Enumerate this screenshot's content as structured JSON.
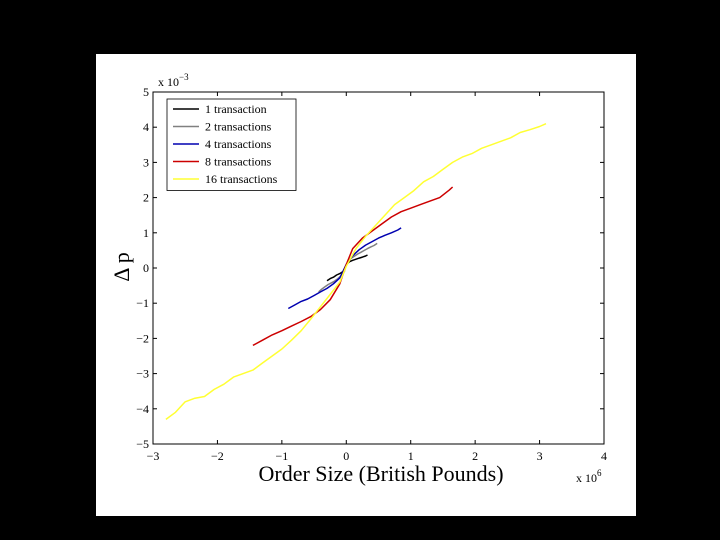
{
  "chart_data": {
    "type": "line",
    "title": "",
    "xlabel": "Order Size (British Pounds)",
    "ylabel": "Δ p",
    "x_multiplier": {
      "base": "x 10",
      "exp": "6"
    },
    "y_multiplier": {
      "base": "x 10",
      "exp": "−3"
    },
    "xlim": [
      -3000000,
      4000000
    ],
    "ylim": [
      -0.005,
      0.005
    ],
    "xticks": [
      -3000000,
      -2000000,
      -1000000,
      0,
      1000000,
      2000000,
      3000000,
      4000000
    ],
    "xtick_labels": [
      "−3",
      "−2",
      "−1",
      "0",
      "1",
      "2",
      "3",
      "4"
    ],
    "yticks": [
      -0.005,
      -0.004,
      -0.003,
      -0.002,
      -0.001,
      0,
      0.001,
      0.002,
      0.003,
      0.004,
      0.005
    ],
    "ytick_labels": [
      "−5",
      "−4",
      "−3",
      "−2",
      "−1",
      "0",
      "1",
      "2",
      "3",
      "4",
      "5"
    ],
    "grid": false,
    "legend_position": "top-left",
    "series": [
      {
        "name": "1 transaction",
        "color": "#000000",
        "x": [
          -300000,
          -250000,
          -200000,
          -150000,
          -100000,
          -50000,
          0,
          50000,
          100000,
          150000,
          200000,
          250000,
          300000,
          330000
        ],
        "y": [
          -0.00036,
          -0.0003,
          -0.00026,
          -0.0002,
          -0.00016,
          -0.0001,
          0.0001,
          0.00018,
          0.00022,
          0.00025,
          0.00028,
          0.00031,
          0.00034,
          0.00037
        ]
      },
      {
        "name": "2 transactions",
        "color": "#808080",
        "x": [
          -430000,
          -380000,
          -330000,
          -280000,
          -230000,
          -180000,
          -130000,
          -80000,
          -30000,
          0,
          30000,
          80000,
          130000,
          180000,
          230000,
          280000,
          330000,
          380000,
          430000,
          480000
        ],
        "y": [
          -0.00068,
          -0.0006,
          -0.00053,
          -0.00047,
          -0.00042,
          -0.00037,
          -0.0003,
          -0.00022,
          -0.0001,
          0.0001,
          0.0002,
          0.00028,
          0.00034,
          0.0004,
          0.00045,
          0.0005,
          0.00055,
          0.0006,
          0.00064,
          0.0007
        ]
      },
      {
        "name": "4 transactions",
        "color": "#0000b0",
        "x": [
          -900000,
          -800000,
          -700000,
          -600000,
          -500000,
          -400000,
          -300000,
          -200000,
          -100000,
          0,
          100000,
          200000,
          300000,
          400000,
          500000,
          600000,
          700000,
          800000,
          850000
        ],
        "y": [
          -0.00115,
          -0.00105,
          -0.00095,
          -0.00088,
          -0.00078,
          -0.00068,
          -0.00058,
          -0.00045,
          -0.00028,
          0.0001,
          0.00035,
          0.00052,
          0.00065,
          0.00075,
          0.00085,
          0.00093,
          0.001,
          0.00108,
          0.00114
        ]
      },
      {
        "name": "8 transactions",
        "color": "#cc0000",
        "x": [
          -1450000,
          -1300000,
          -1150000,
          -1000000,
          -850000,
          -700000,
          -550000,
          -400000,
          -250000,
          -100000,
          0,
          100000,
          250000,
          400000,
          550000,
          700000,
          850000,
          1000000,
          1150000,
          1300000,
          1450000,
          1600000,
          1650000
        ],
        "y": [
          -0.0022,
          -0.00205,
          -0.0019,
          -0.00178,
          -0.00165,
          -0.00152,
          -0.00138,
          -0.00118,
          -0.0009,
          -0.00045,
          0.0001,
          0.00055,
          0.00085,
          0.00105,
          0.00125,
          0.00145,
          0.0016,
          0.0017,
          0.0018,
          0.0019,
          0.002,
          0.00222,
          0.0023
        ]
      },
      {
        "name": "16 transactions",
        "color": "#ffff33",
        "x": [
          -2800000,
          -2650000,
          -2500000,
          -2350000,
          -2200000,
          -2050000,
          -1900000,
          -1750000,
          -1600000,
          -1450000,
          -1300000,
          -1150000,
          -1000000,
          -850000,
          -700000,
          -550000,
          -400000,
          -250000,
          -100000,
          0,
          150000,
          300000,
          450000,
          600000,
          750000,
          900000,
          1050000,
          1200000,
          1350000,
          1500000,
          1650000,
          1800000,
          1950000,
          2100000,
          2250000,
          2400000,
          2550000,
          2700000,
          2850000,
          3000000,
          3100000
        ],
        "y": [
          -0.0043,
          -0.0041,
          -0.0038,
          -0.0037,
          -0.00365,
          -0.00345,
          -0.0033,
          -0.0031,
          -0.003,
          -0.0029,
          -0.0027,
          -0.0025,
          -0.0023,
          -0.00205,
          -0.00178,
          -0.00145,
          -0.0011,
          -0.00075,
          -0.0004,
          5e-05,
          0.00055,
          0.0009,
          0.0012,
          0.0015,
          0.0018,
          0.002,
          0.0022,
          0.00245,
          0.0026,
          0.0028,
          0.003,
          0.00315,
          0.00325,
          0.0034,
          0.0035,
          0.0036,
          0.0037,
          0.00385,
          0.00393,
          0.00402,
          0.0041
        ]
      }
    ]
  }
}
